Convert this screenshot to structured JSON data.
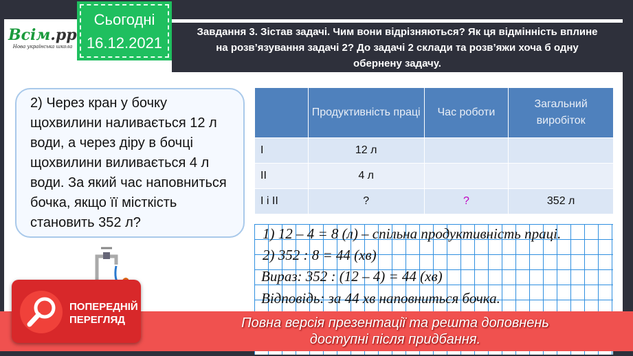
{
  "logo": {
    "brand_main": "Всім",
    "brand_ext": ".pptx",
    "tagline": "Нова українська школа"
  },
  "date": {
    "label": "Сьогодні",
    "value": "16.12.2021"
  },
  "task": {
    "line1": "Завдання 3. Зістав задачі. Чим вони відрізняються? Як ця відмінність вплине",
    "line2": "на розв’язування задачі 2? До задачі 2 склади та розв’яжи хоча б одну",
    "line3": "обернену задачу."
  },
  "problem": {
    "text": "2)  Через кран у бочку щохвилини наливається 12 л води, а через діру в бочці щохвилини виливається 4 л води. За який час наповниться бочка, якщо її місткість становить 352 л?"
  },
  "table": {
    "headers": [
      "",
      "Продуктивність праці",
      "Час роботи",
      "Загальний виробіток"
    ],
    "rows": [
      [
        "I",
        "12 л",
        "",
        ""
      ],
      [
        "II",
        "4 л",
        "",
        ""
      ],
      [
        "I і II",
        "?",
        "?",
        "352 л"
      ]
    ]
  },
  "solution": [
    "1) 12 – 4 = 8 (л) – спільна продуктивність праці.",
    "2) 352 : 8 = 44 (хв)",
    "Вираз: 352 : (12 – 4) = 44 (хв)",
    "Відповідь: за 44 хв наповниться бочка."
  ],
  "preview": {
    "badge_line1": "ПОПЕРЕДНІЙ",
    "badge_line2": "ПЕРЕГЛЯД",
    "message_line1": "Повна версія презентації та решта доповнень",
    "message_line2": "доступні після придбання."
  },
  "colors": {
    "accent_green": "#1fbf5f",
    "header_blue": "#4f81bd",
    "banner_red": "#f0514f"
  }
}
